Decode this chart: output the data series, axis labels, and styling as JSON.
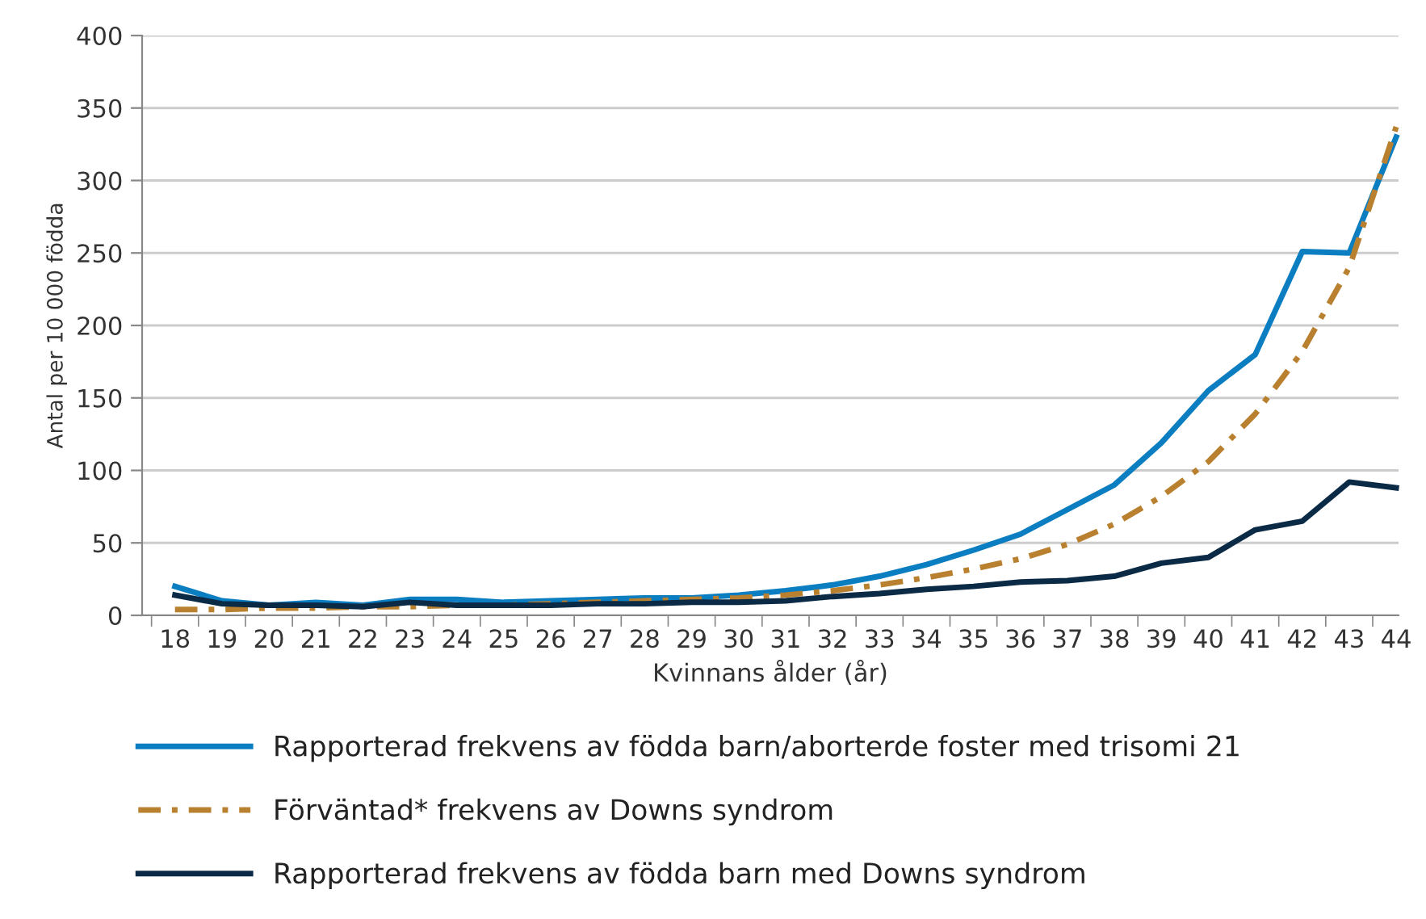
{
  "chart_data": {
    "type": "line",
    "xlabel": "Kvinnans ålder (år)",
    "ylabel": "Antal per 10 000 födda",
    "categories": [
      "18",
      "19",
      "20",
      "21",
      "22",
      "23",
      "24",
      "25",
      "26",
      "27",
      "28",
      "29",
      "30",
      "31",
      "32",
      "33",
      "34",
      "35",
      "36",
      "37",
      "38",
      "39",
      "40",
      "41",
      "42",
      "43",
      "44"
    ],
    "series": [
      {
        "name": "Rapporterad frekvens av födda barn/aborterde foster med trisomi 21",
        "color": "#0b7dc1",
        "line_style": "solid",
        "values": [
          20,
          10,
          7,
          9,
          7,
          11,
          11,
          9,
          10,
          11,
          12,
          12,
          14,
          17,
          21,
          27,
          35,
          45,
          56,
          73,
          90,
          119,
          155,
          180,
          251,
          250,
          330
        ]
      },
      {
        "name": "Förväntad* frekvens av Downs syndrom",
        "color": "#b9812f",
        "line_style": "dashed",
        "values": [
          4,
          4,
          5,
          5,
          6,
          6,
          7,
          7,
          8,
          9,
          10,
          11,
          12,
          14,
          17,
          21,
          26,
          32,
          39,
          49,
          63,
          82,
          106,
          139,
          182,
          240,
          337
        ]
      },
      {
        "name": "Rapporterad frekvens av födda barn med Downs syndrom",
        "color": "#0b2a45",
        "line_style": "solid",
        "values": [
          14,
          8,
          7,
          7,
          6,
          9,
          7,
          7,
          7,
          8,
          8,
          9,
          9,
          10,
          13,
          15,
          18,
          20,
          23,
          24,
          27,
          36,
          40,
          59,
          65,
          92,
          88
        ]
      }
    ],
    "ylim": [
      0,
      400
    ],
    "yticks": [
      0,
      50,
      100,
      150,
      200,
      250,
      300,
      350,
      400
    ],
    "grid": "y",
    "legend": "bottom",
    "marker": "none"
  }
}
